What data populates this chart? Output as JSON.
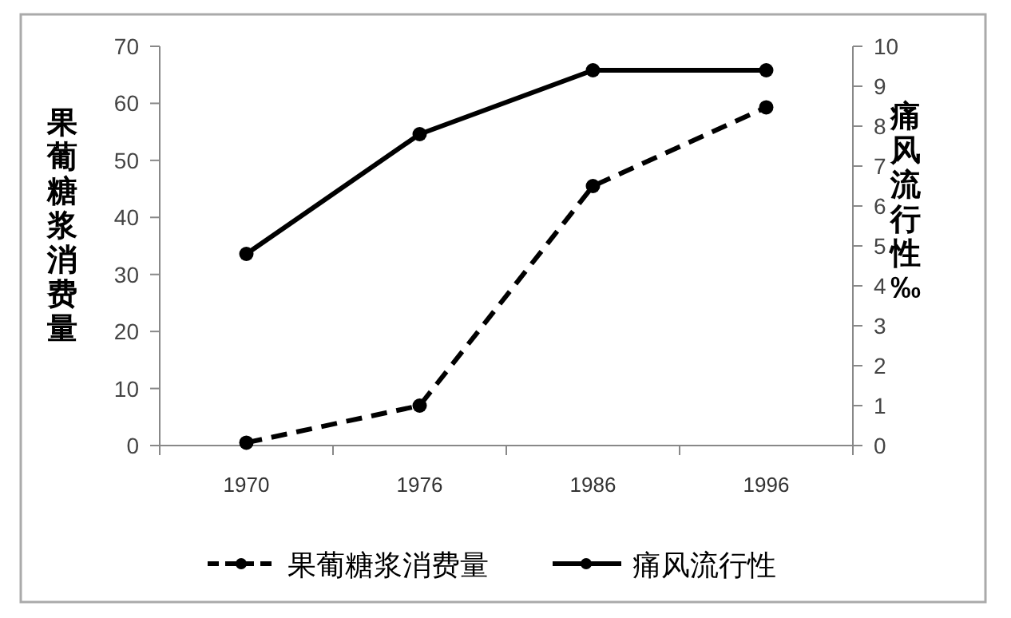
{
  "chart_data": {
    "type": "line",
    "categories": [
      "1970",
      "1976",
      "1986",
      "1996"
    ],
    "ylabel": "果葡糖浆消费量",
    "y2label": "痛风流行性‰",
    "ylim": [
      0,
      70
    ],
    "yticks": [
      0,
      10,
      20,
      30,
      40,
      50,
      60,
      70
    ],
    "y2lim": [
      0,
      10
    ],
    "y2ticks": [
      0,
      1,
      2,
      3,
      4,
      5,
      6,
      7,
      8,
      9,
      10
    ],
    "marker": "circle",
    "grid": false,
    "legend": "bottom",
    "series": [
      {
        "name": "果葡糖浆消费量",
        "color": "#000000",
        "line_style": "dashed",
        "values": [
          0.5,
          7,
          45.5,
          59.3
        ]
      },
      {
        "name": "痛风流行性",
        "color": "#000000",
        "line_style": "solid",
        "axis": "y2",
        "values": [
          4.8,
          7.8,
          9.4,
          9.4
        ]
      }
    ]
  }
}
